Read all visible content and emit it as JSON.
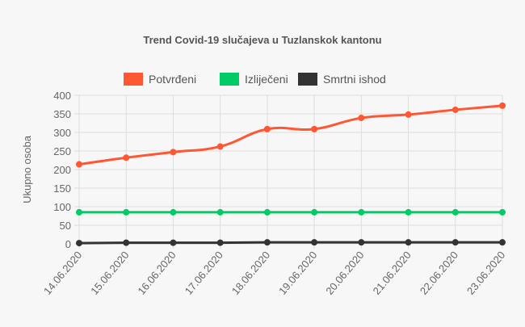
{
  "chart_data": {
    "type": "line",
    "title": "Trend Covid-19 slučajeva u Tuzlanskok kantonu",
    "xlabel": "",
    "ylabel": "Ukupno osoba",
    "categories": [
      "14.06.2020",
      "15.06.2020",
      "16.06.2020",
      "17.06.2020",
      "18.06.2020",
      "19.06.2020",
      "20.06.2020",
      "21.06.2020",
      "22.06.2020",
      "23.06.2020"
    ],
    "ylim": [
      0,
      400
    ],
    "yticks": [
      0,
      50,
      100,
      150,
      200,
      250,
      300,
      350,
      400
    ],
    "grid": true,
    "legend_position": "top",
    "series": [
      {
        "name": "Potvrđeni",
        "color": "#ff5733",
        "values": [
          214,
          232,
          247,
          262,
          309,
          309,
          339,
          348,
          361,
          372
        ]
      },
      {
        "name": "Izliječeni",
        "color": "#00cc66",
        "values": [
          85,
          85,
          85,
          85,
          85,
          85,
          85,
          85,
          85,
          85
        ]
      },
      {
        "name": "Smrtni ishod",
        "color": "#333333",
        "values": [
          2,
          3,
          3,
          3,
          4,
          4,
          4,
          4,
          4,
          4
        ]
      }
    ]
  }
}
